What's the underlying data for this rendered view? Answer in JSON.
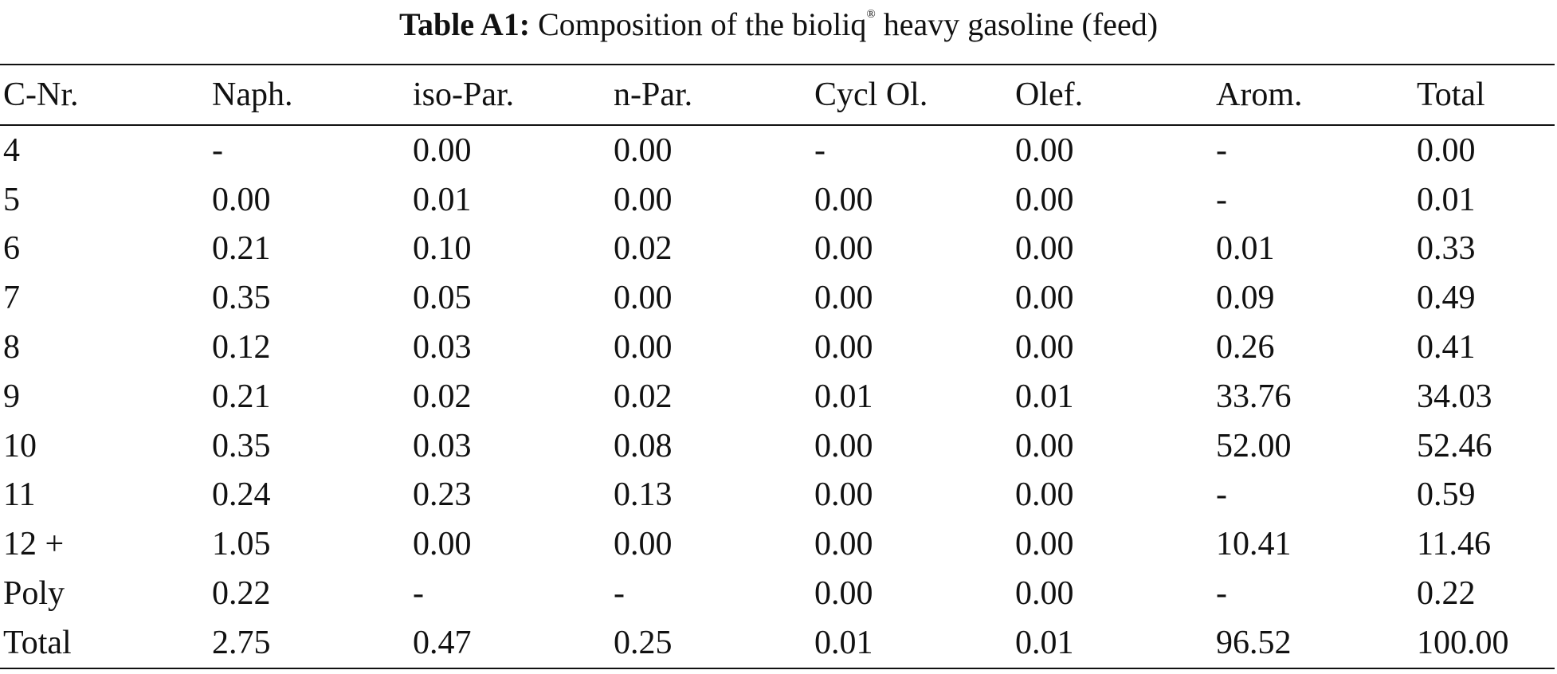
{
  "caption": {
    "label": "Table A1:",
    "text_before_sup": "Composition of the bioliq",
    "sup": "®",
    "text_after_sup": " heavy gasoline (feed)"
  },
  "table": {
    "headers": [
      "C-Nr.",
      "Naph.",
      "iso-Par.",
      "n-Par.",
      "Cycl Ol.",
      "Olef.",
      "Arom.",
      "Total"
    ],
    "rows": [
      [
        "4",
        "-",
        "0.00",
        "0.00",
        "-",
        "0.00",
        "-",
        "0.00"
      ],
      [
        "5",
        "0.00",
        "0.01",
        "0.00",
        "0.00",
        "0.00",
        "-",
        "0.01"
      ],
      [
        "6",
        "0.21",
        "0.10",
        "0.02",
        "0.00",
        "0.00",
        "0.01",
        "0.33"
      ],
      [
        "7",
        "0.35",
        "0.05",
        "0.00",
        "0.00",
        "0.00",
        "0.09",
        "0.49"
      ],
      [
        "8",
        "0.12",
        "0.03",
        "0.00",
        "0.00",
        "0.00",
        "0.26",
        "0.41"
      ],
      [
        "9",
        "0.21",
        "0.02",
        "0.02",
        "0.01",
        "0.01",
        "33.76",
        "34.03"
      ],
      [
        "10",
        "0.35",
        "0.03",
        "0.08",
        "0.00",
        "0.00",
        "52.00",
        "52.46"
      ],
      [
        "11",
        "0.24",
        "0.23",
        "0.13",
        "0.00",
        "0.00",
        "-",
        "0.59"
      ],
      [
        "12 +",
        "1.05",
        "0.00",
        "0.00",
        "0.00",
        "0.00",
        "10.41",
        "11.46"
      ],
      [
        "Poly",
        "0.22",
        "-",
        "-",
        "0.00",
        "0.00",
        "-",
        "0.22"
      ],
      [
        "Total",
        "2.75",
        "0.47",
        "0.25",
        "0.01",
        "0.01",
        "96.52",
        "100.00"
      ]
    ]
  }
}
